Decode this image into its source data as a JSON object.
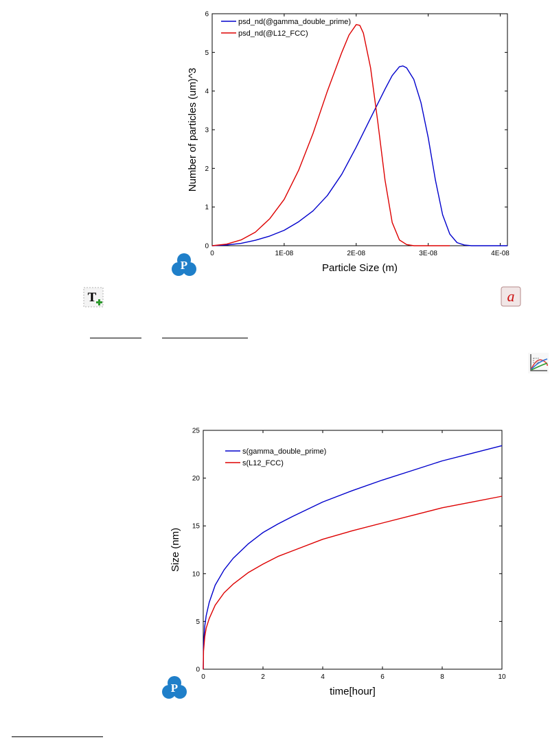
{
  "icons": {
    "logo_1": "pandat-logo-icon",
    "logo_2": "pandat-logo-icon",
    "add_text": "add-text-icon",
    "text_style": "text-style-icon",
    "chart_tool": "chart-settings-icon",
    "logo_letter": "P",
    "text_style_letter": "a",
    "add_text_letter": "T"
  },
  "colors": {
    "blue": "#0000cc",
    "red": "#dd0000",
    "logo": "#1f7fc9"
  },
  "chart_data": [
    {
      "type": "line",
      "title": "",
      "xlabel": "Particle Size (m)",
      "ylabel": "Number of particles (um)^3",
      "xlim": [
        0,
        4.1e-08
      ],
      "ylim": [
        0,
        6
      ],
      "xticks": [
        0,
        1e-08,
        2e-08,
        3e-08,
        4e-08
      ],
      "xtick_labels": [
        "0",
        "1E-08",
        "2E-08",
        "3E-08",
        "4E-08"
      ],
      "yticks": [
        0,
        1,
        2,
        3,
        4,
        5,
        6
      ],
      "ytick_labels": [
        "0",
        "1",
        "2",
        "3",
        "4",
        "5",
        "6"
      ],
      "grid": false,
      "legend_position": "top-left",
      "series": [
        {
          "name": "psd_nd(@gamma_double_prime)",
          "color": "#0000cc",
          "x": [
            0,
            2e-09,
            4e-09,
            6e-09,
            8e-09,
            1e-08,
            1.2e-08,
            1.4e-08,
            1.6e-08,
            1.8e-08,
            2e-08,
            2.2e-08,
            2.4e-08,
            2.5e-08,
            2.6e-08,
            2.65e-08,
            2.7e-08,
            2.8e-08,
            2.9e-08,
            3e-08,
            3.1e-08,
            3.2e-08,
            3.3e-08,
            3.4e-08,
            3.5e-08,
            3.6e-08,
            3.8e-08,
            4.1e-08
          ],
          "y": [
            0,
            0.02,
            0.06,
            0.14,
            0.25,
            0.4,
            0.62,
            0.9,
            1.3,
            1.85,
            2.55,
            3.3,
            4.05,
            4.4,
            4.63,
            4.65,
            4.6,
            4.3,
            3.7,
            2.8,
            1.7,
            0.8,
            0.3,
            0.08,
            0.02,
            0,
            0,
            0
          ]
        },
        {
          "name": "psd_nd(@L12_FCC)",
          "color": "#dd0000",
          "x": [
            0,
            2e-09,
            4e-09,
            6e-09,
            8e-09,
            1e-08,
            1.2e-08,
            1.4e-08,
            1.6e-08,
            1.8e-08,
            1.9e-08,
            2e-08,
            2.05e-08,
            2.1e-08,
            2.2e-08,
            2.3e-08,
            2.4e-08,
            2.5e-08,
            2.6e-08,
            2.7e-08,
            2.8e-08,
            3e-08,
            3.3e-08
          ],
          "y": [
            0,
            0.04,
            0.15,
            0.35,
            0.7,
            1.2,
            1.95,
            2.9,
            4.0,
            5.0,
            5.45,
            5.72,
            5.7,
            5.5,
            4.6,
            3.2,
            1.7,
            0.6,
            0.15,
            0.03,
            0,
            0,
            0
          ]
        }
      ]
    },
    {
      "type": "line",
      "title": "",
      "xlabel": "time[hour]",
      "ylabel": "Size (nm)",
      "xlim": [
        0,
        10
      ],
      "ylim": [
        0,
        25
      ],
      "xticks": [
        0,
        2,
        4,
        6,
        8,
        10
      ],
      "xtick_labels": [
        "0",
        "2",
        "4",
        "6",
        "8",
        "10"
      ],
      "yticks": [
        0,
        5,
        10,
        15,
        20,
        25
      ],
      "ytick_labels": [
        "0",
        "5",
        "10",
        "15",
        "20",
        "25"
      ],
      "grid": false,
      "legend_position": "top-left",
      "series": [
        {
          "name": "s(gamma_double_prime)",
          "color": "#0000cc",
          "x": [
            0,
            0.01,
            0.05,
            0.1,
            0.2,
            0.4,
            0.7,
            1.0,
            1.5,
            2.0,
            2.5,
            3.0,
            4.0,
            5.0,
            6.0,
            7.0,
            8.0,
            9.0,
            10.0
          ],
          "y": [
            0,
            2.5,
            4.5,
            5.6,
            7.0,
            8.8,
            10.4,
            11.6,
            13.1,
            14.3,
            15.2,
            16.0,
            17.5,
            18.7,
            19.8,
            20.8,
            21.8,
            22.6,
            23.4
          ]
        },
        {
          "name": "s(L12_FCC)",
          "color": "#dd0000",
          "x": [
            0,
            0.01,
            0.05,
            0.1,
            0.2,
            0.4,
            0.7,
            1.0,
            1.5,
            2.0,
            2.5,
            3.0,
            4.0,
            5.0,
            6.0,
            7.0,
            8.0,
            9.0,
            10.0
          ],
          "y": [
            0,
            1.9,
            3.4,
            4.3,
            5.3,
            6.7,
            8.0,
            8.9,
            10.1,
            11.0,
            11.8,
            12.4,
            13.6,
            14.5,
            15.3,
            16.1,
            16.9,
            17.5,
            18.1
          ]
        }
      ]
    }
  ]
}
